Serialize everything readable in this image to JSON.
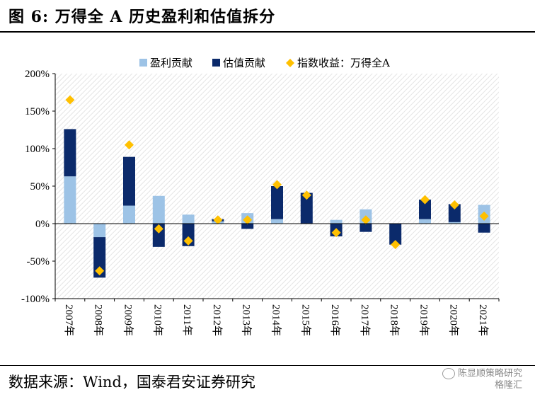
{
  "header": {
    "title": "图 6:  万得全 A 历史盈利和估值拆分"
  },
  "footer": {
    "source": "数据来源：Wind，国泰君安证券研究",
    "watermark_line1": "陈显顺策略研究",
    "watermark_line2": "格隆汇"
  },
  "colors": {
    "earnings": "#9DC3E6",
    "valuation": "#0B2A6B",
    "index_return": "#FFC000"
  },
  "chart_data": {
    "type": "bar",
    "stacked": true,
    "categories": [
      "2007年",
      "2008年",
      "2009年",
      "2010年",
      "2011年",
      "2012年",
      "2013年",
      "2014年",
      "2015年",
      "2016年",
      "2017年",
      "2018年",
      "2019年",
      "2020年",
      "2021年"
    ],
    "series": [
      {
        "name": "盈利贡献",
        "type": "bar",
        "values": [
          63,
          -18,
          24,
          37,
          12,
          3,
          14,
          6,
          0,
          5,
          19,
          0,
          6,
          2,
          25
        ]
      },
      {
        "name": "估值贡献",
        "type": "bar",
        "values": [
          63,
          -54,
          65,
          -31,
          -30,
          3,
          -7,
          44,
          41,
          -17,
          -11,
          -28,
          26,
          24,
          -12
        ]
      },
      {
        "name": "指数收益：万得全A",
        "type": "scatter",
        "marker": "diamond",
        "values": [
          165,
          -63,
          105,
          -7,
          -23,
          5,
          5,
          52,
          38,
          -12,
          5,
          -28,
          32,
          25,
          10
        ]
      }
    ],
    "yticks": [
      "200%",
      "150%",
      "100%",
      "50%",
      "0%",
      "-50%",
      "-100%"
    ],
    "ylim": [
      -100,
      200
    ],
    "grid": false,
    "legend_position": "top"
  }
}
